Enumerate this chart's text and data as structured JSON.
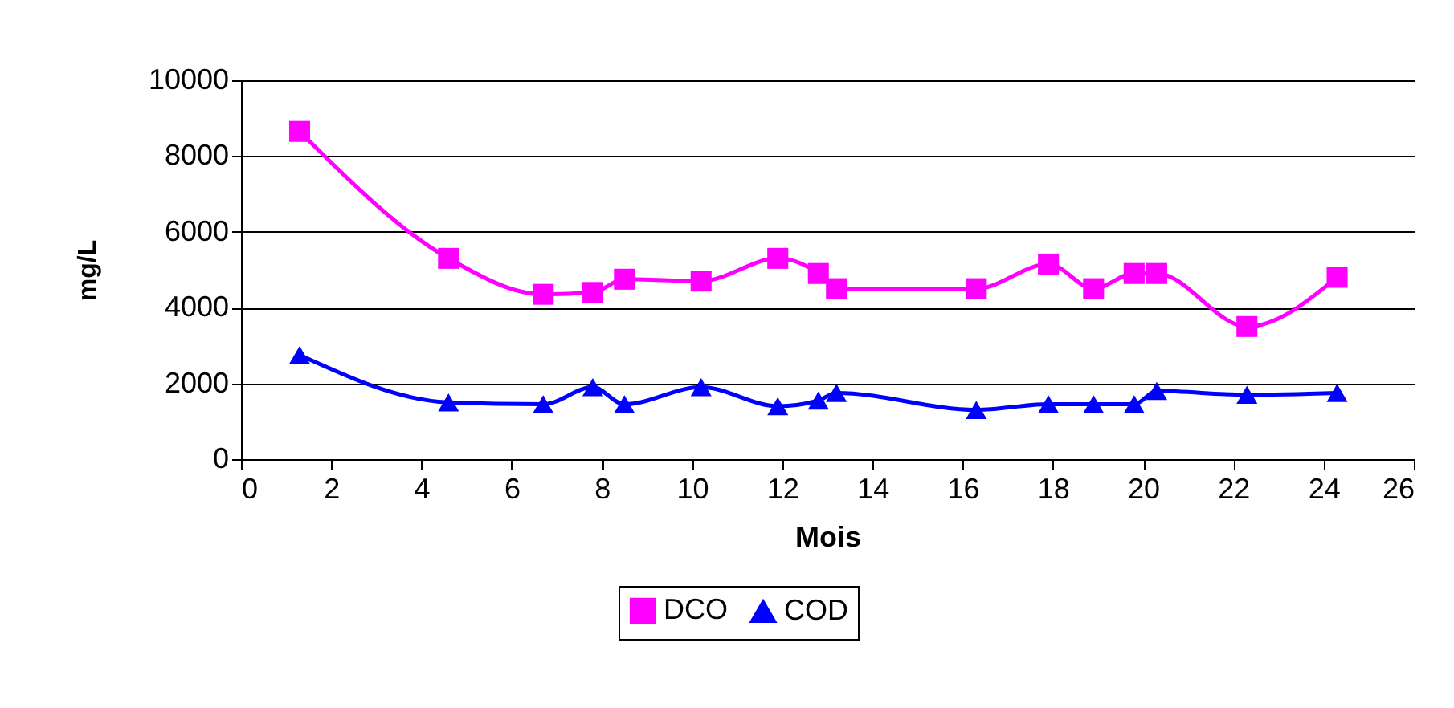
{
  "chart_data": {
    "type": "line",
    "xlabel": "Mois",
    "ylabel": "mg/L",
    "x": [
      1.3,
      4.6,
      6.7,
      7.8,
      8.5,
      10.2,
      11.9,
      12.8,
      13.2,
      16.3,
      17.9,
      18.9,
      19.8,
      20.3,
      22.3,
      24.3
    ],
    "series": [
      {
        "name": "DCO",
        "color": "#ff00ff",
        "marker": "square",
        "values": [
          8650,
          5300,
          4350,
          4400,
          4750,
          4700,
          5300,
          4900,
          4500,
          4500,
          5150,
          4500,
          4900,
          4900,
          3500,
          4800
        ]
      },
      {
        "name": "COD",
        "color": "#0000ff",
        "marker": "triangle",
        "values": [
          2750,
          1500,
          1450,
          1900,
          1450,
          1900,
          1400,
          1550,
          1750,
          1300,
          1450,
          1450,
          1450,
          1800,
          1700,
          1750
        ]
      }
    ],
    "xlim": [
      0,
      26
    ],
    "xticks": [
      0,
      2,
      4,
      6,
      8,
      10,
      12,
      14,
      16,
      18,
      20,
      22,
      24,
      26
    ],
    "ylim": [
      0,
      10000
    ],
    "yticks": [
      0,
      2000,
      4000,
      6000,
      8000,
      10000
    ],
    "grid": "y",
    "legend": "bottom"
  }
}
